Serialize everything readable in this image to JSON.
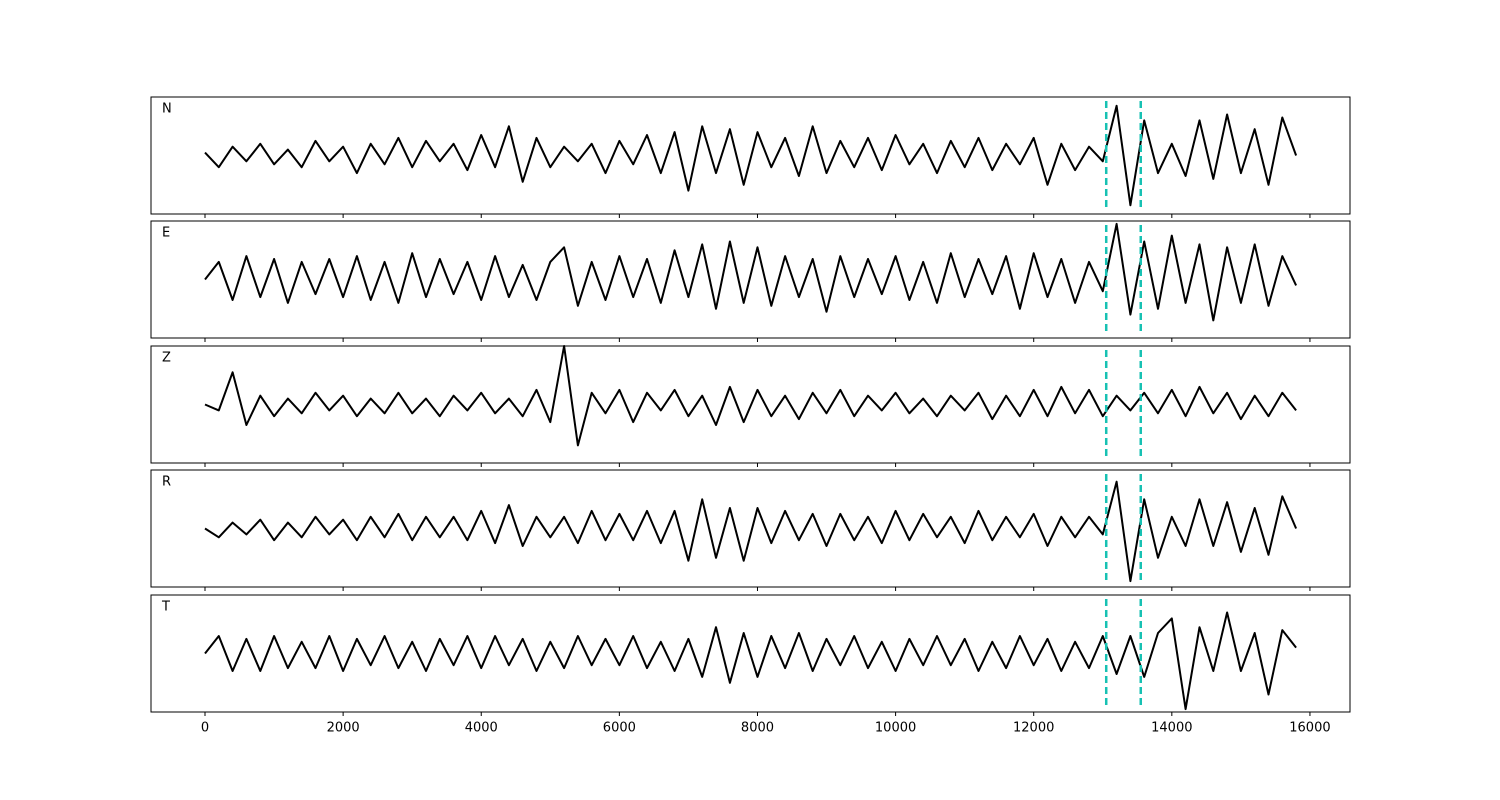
{
  "chart_data": {
    "type": "line",
    "x": [
      0,
      200,
      400,
      600,
      800,
      1000,
      1200,
      1400,
      1600,
      1800,
      2000,
      2200,
      2400,
      2600,
      2800,
      3000,
      3200,
      3400,
      3600,
      3800,
      4000,
      4200,
      4400,
      4600,
      4800,
      5000,
      5200,
      5400,
      5600,
      5800,
      6000,
      6200,
      6400,
      6600,
      6800,
      7000,
      7200,
      7400,
      7600,
      7800,
      8000,
      8200,
      8400,
      8600,
      8800,
      9000,
      9200,
      9400,
      9600,
      9800,
      10000,
      10200,
      10400,
      10600,
      10800,
      11000,
      11200,
      11400,
      11600,
      11800,
      12000,
      12200,
      12400,
      12600,
      12800,
      13000,
      13200,
      13400,
      13600,
      13800,
      14000,
      14200,
      14400,
      14600,
      14800,
      15000,
      15200,
      15400,
      15600,
      15800
    ],
    "xlim": [
      -782,
      16580
    ],
    "xticks": [
      0,
      2000,
      4000,
      6000,
      8000,
      10000,
      12000,
      14000,
      16000
    ],
    "ylim": [
      -1,
      1
    ],
    "markers": [
      13050,
      13550
    ],
    "marker_color": "#17c1b3",
    "series": [
      {
        "name": "N",
        "color": "#000000",
        "values": [
          0.05,
          -0.2,
          0.15,
          -0.1,
          0.2,
          -0.15,
          0.1,
          -0.2,
          0.25,
          -0.1,
          0.15,
          -0.3,
          0.2,
          -0.15,
          0.3,
          -0.2,
          0.25,
          -0.1,
          0.2,
          -0.25,
          0.35,
          -0.2,
          0.5,
          -0.45,
          0.3,
          -0.2,
          0.15,
          -0.1,
          0.2,
          -0.3,
          0.25,
          -0.15,
          0.35,
          -0.3,
          0.4,
          -0.6,
          0.5,
          -0.3,
          0.45,
          -0.5,
          0.4,
          -0.2,
          0.3,
          -0.35,
          0.5,
          -0.3,
          0.25,
          -0.2,
          0.3,
          -0.25,
          0.35,
          -0.15,
          0.2,
          -0.3,
          0.25,
          -0.2,
          0.3,
          -0.25,
          0.2,
          -0.15,
          0.3,
          -0.5,
          0.2,
          -0.25,
          0.15,
          -0.1,
          0.85,
          -0.85,
          0.6,
          -0.3,
          0.2,
          -0.35,
          0.6,
          -0.4,
          0.7,
          -0.3,
          0.45,
          -0.5,
          0.65,
          0.0
        ]
      },
      {
        "name": "E",
        "color": "#000000",
        "values": [
          0.0,
          0.3,
          -0.35,
          0.4,
          -0.3,
          0.35,
          -0.4,
          0.3,
          -0.25,
          0.35,
          -0.3,
          0.4,
          -0.35,
          0.3,
          -0.4,
          0.45,
          -0.3,
          0.35,
          -0.25,
          0.3,
          -0.35,
          0.4,
          -0.3,
          0.25,
          -0.35,
          0.3,
          0.55,
          -0.45,
          0.3,
          -0.35,
          0.4,
          -0.3,
          0.35,
          -0.4,
          0.5,
          -0.3,
          0.6,
          -0.5,
          0.65,
          -0.4,
          0.55,
          -0.45,
          0.4,
          -0.3,
          0.35,
          -0.55,
          0.4,
          -0.3,
          0.35,
          -0.25,
          0.4,
          -0.35,
          0.3,
          -0.4,
          0.45,
          -0.3,
          0.35,
          -0.25,
          0.4,
          -0.5,
          0.45,
          -0.3,
          0.35,
          -0.4,
          0.3,
          -0.2,
          0.95,
          -0.6,
          0.65,
          -0.5,
          0.75,
          -0.4,
          0.6,
          -0.7,
          0.55,
          -0.4,
          0.6,
          -0.45,
          0.4,
          -0.1
        ]
      },
      {
        "name": "Z",
        "color": "#000000",
        "values": [
          0.0,
          -0.1,
          0.55,
          -0.35,
          0.15,
          -0.2,
          0.1,
          -0.15,
          0.2,
          -0.1,
          0.15,
          -0.2,
          0.1,
          -0.15,
          0.2,
          -0.15,
          0.1,
          -0.2,
          0.15,
          -0.1,
          0.2,
          -0.15,
          0.1,
          -0.2,
          0.25,
          -0.3,
          1.0,
          -0.7,
          0.2,
          -0.15,
          0.25,
          -0.3,
          0.2,
          -0.1,
          0.25,
          -0.2,
          0.15,
          -0.35,
          0.3,
          -0.3,
          0.25,
          -0.2,
          0.15,
          -0.25,
          0.2,
          -0.15,
          0.25,
          -0.2,
          0.15,
          -0.1,
          0.2,
          -0.15,
          0.1,
          -0.2,
          0.15,
          -0.1,
          0.2,
          -0.25,
          0.15,
          -0.2,
          0.25,
          -0.2,
          0.3,
          -0.15,
          0.25,
          -0.2,
          0.15,
          -0.1,
          0.2,
          -0.15,
          0.25,
          -0.2,
          0.3,
          -0.15,
          0.2,
          -0.25,
          0.15,
          -0.2,
          0.2,
          -0.1
        ]
      },
      {
        "name": "R",
        "color": "#000000",
        "values": [
          0.0,
          -0.15,
          0.1,
          -0.1,
          0.15,
          -0.2,
          0.1,
          -0.15,
          0.2,
          -0.1,
          0.15,
          -0.2,
          0.2,
          -0.15,
          0.25,
          -0.2,
          0.2,
          -0.15,
          0.2,
          -0.2,
          0.3,
          -0.25,
          0.4,
          -0.3,
          0.2,
          -0.15,
          0.2,
          -0.25,
          0.3,
          -0.2,
          0.25,
          -0.2,
          0.3,
          -0.25,
          0.3,
          -0.55,
          0.5,
          -0.5,
          0.35,
          -0.55,
          0.35,
          -0.25,
          0.3,
          -0.2,
          0.25,
          -0.3,
          0.25,
          -0.2,
          0.2,
          -0.25,
          0.3,
          -0.2,
          0.25,
          -0.15,
          0.2,
          -0.25,
          0.3,
          -0.2,
          0.2,
          -0.15,
          0.25,
          -0.3,
          0.2,
          -0.15,
          0.2,
          -0.1,
          0.8,
          -0.9,
          0.5,
          -0.5,
          0.2,
          -0.3,
          0.5,
          -0.3,
          0.45,
          -0.4,
          0.35,
          -0.45,
          0.55,
          0.0
        ]
      },
      {
        "name": "T",
        "color": "#000000",
        "values": [
          0.0,
          0.3,
          -0.3,
          0.25,
          -0.3,
          0.3,
          -0.25,
          0.2,
          -0.25,
          0.3,
          -0.3,
          0.25,
          -0.2,
          0.3,
          -0.25,
          0.2,
          -0.3,
          0.25,
          -0.2,
          0.3,
          -0.25,
          0.3,
          -0.2,
          0.25,
          -0.3,
          0.2,
          -0.25,
          0.3,
          -0.2,
          0.25,
          -0.2,
          0.3,
          -0.25,
          0.2,
          -0.3,
          0.25,
          -0.4,
          0.45,
          -0.5,
          0.35,
          -0.4,
          0.3,
          -0.25,
          0.35,
          -0.3,
          0.25,
          -0.2,
          0.3,
          -0.25,
          0.2,
          -0.3,
          0.25,
          -0.2,
          0.3,
          -0.2,
          0.25,
          -0.3,
          0.2,
          -0.25,
          0.3,
          -0.2,
          0.25,
          -0.3,
          0.2,
          -0.25,
          0.3,
          -0.35,
          0.3,
          -0.4,
          0.35,
          0.6,
          -0.95,
          0.45,
          -0.3,
          0.7,
          -0.3,
          0.35,
          -0.7,
          0.4,
          0.1
        ]
      }
    ]
  }
}
